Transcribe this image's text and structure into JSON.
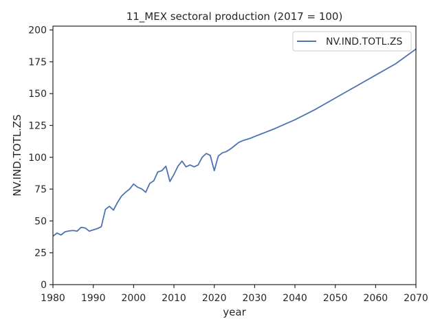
{
  "chart_data": {
    "type": "line",
    "title": "11_MEX sectoral production (2017 = 100)",
    "xlabel": "year",
    "ylabel": "NV.IND.TOTL.ZS",
    "xlim": [
      1980,
      2070
    ],
    "ylim": [
      0,
      203
    ],
    "xticks": [
      1980,
      1990,
      2000,
      2010,
      2020,
      2030,
      2040,
      2050,
      2060,
      2070
    ],
    "yticks": [
      0,
      25,
      50,
      75,
      100,
      125,
      150,
      175,
      200
    ],
    "grid": false,
    "legend_position": "top-right",
    "series": [
      {
        "name": "NV.IND.TOTL.ZS",
        "color": "#4c72b0",
        "x": [
          1980,
          1981,
          1982,
          1983,
          1984,
          1985,
          1986,
          1987,
          1988,
          1989,
          1990,
          1991,
          1992,
          1993,
          1994,
          1995,
          1996,
          1997,
          1998,
          1999,
          2000,
          2001,
          2002,
          2003,
          2004,
          2005,
          2006,
          2007,
          2008,
          2009,
          2010,
          2011,
          2012,
          2013,
          2014,
          2015,
          2016,
          2017,
          2018,
          2019,
          2020,
          2021,
          2022,
          2023,
          2024,
          2025,
          2026,
          2027,
          2028,
          2029,
          2030,
          2035,
          2040,
          2045,
          2050,
          2055,
          2060,
          2065,
          2070
        ],
        "values": [
          38,
          40.5,
          39,
          41.5,
          42.2,
          42.5,
          42,
          45,
          44.5,
          42,
          43,
          44,
          45.5,
          59,
          61.5,
          58.5,
          64.5,
          69.5,
          72.5,
          75,
          79,
          76.5,
          75.2,
          72.5,
          79.5,
          81.5,
          88.5,
          89.5,
          93,
          81,
          86.5,
          93,
          97,
          92.5,
          94,
          92.5,
          94,
          100,
          103,
          101.5,
          89.5,
          101,
          103.5,
          104.5,
          106.5,
          109,
          111.5,
          113,
          114,
          115,
          116.3,
          122.5,
          129.5,
          137.5,
          146.5,
          155.5,
          164.5,
          173.5,
          185
        ]
      }
    ]
  }
}
